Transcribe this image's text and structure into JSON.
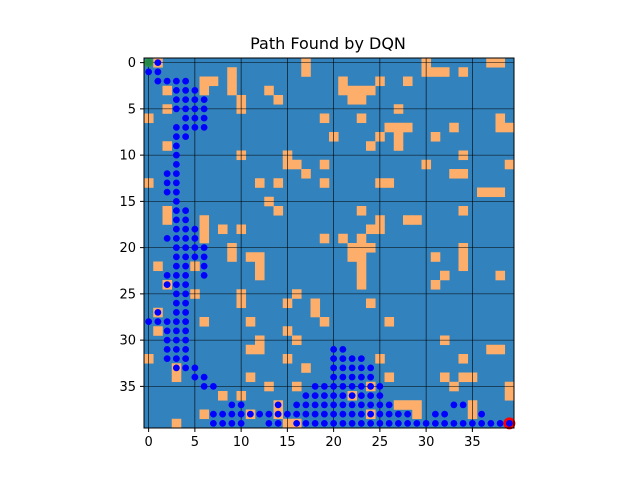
{
  "chart_data": {
    "type": "heatmap",
    "title": "Path Found by DQN",
    "grid_size": 40,
    "grid_lines": true,
    "x_ticks": [
      0,
      5,
      10,
      15,
      20,
      25,
      30,
      35
    ],
    "y_ticks": [
      0,
      5,
      10,
      15,
      20,
      25,
      30,
      35
    ],
    "xlim": [
      -0.5,
      39.5
    ],
    "ylim": [
      39.5,
      -0.5
    ],
    "colors": {
      "free": "#3282bd",
      "obstacle": "#fdae6b",
      "path": "#0000ff",
      "start": "#2ca02c",
      "goal": "#ff0000",
      "gridline": "#000000"
    },
    "start": [
      0,
      0
    ],
    "goal": [
      39,
      39
    ],
    "obstacles": [
      [
        1,
        0
      ],
      [
        17,
        0
      ],
      [
        30,
        0
      ],
      [
        37,
        0
      ],
      [
        38,
        0
      ],
      [
        9,
        1
      ],
      [
        17,
        1
      ],
      [
        30,
        1
      ],
      [
        31,
        1
      ],
      [
        32,
        1
      ],
      [
        34,
        1
      ],
      [
        6,
        2
      ],
      [
        7,
        2
      ],
      [
        9,
        2
      ],
      [
        21,
        2
      ],
      [
        25,
        2
      ],
      [
        28,
        2
      ],
      [
        2,
        3
      ],
      [
        6,
        3
      ],
      [
        9,
        3
      ],
      [
        13,
        3
      ],
      [
        21,
        3
      ],
      [
        22,
        3
      ],
      [
        23,
        3
      ],
      [
        24,
        3
      ],
      [
        10,
        4
      ],
      [
        14,
        4
      ],
      [
        22,
        4
      ],
      [
        23,
        4
      ],
      [
        2,
        5
      ],
      [
        10,
        5
      ],
      [
        27,
        5
      ],
      [
        0,
        6
      ],
      [
        19,
        6
      ],
      [
        23,
        6
      ],
      [
        38,
        6
      ],
      [
        26,
        7
      ],
      [
        27,
        7
      ],
      [
        28,
        7
      ],
      [
        33,
        7
      ],
      [
        38,
        7
      ],
      [
        39,
        7
      ],
      [
        20,
        8
      ],
      [
        25,
        8
      ],
      [
        27,
        8
      ],
      [
        31,
        8
      ],
      [
        2,
        9
      ],
      [
        24,
        9
      ],
      [
        27,
        9
      ],
      [
        10,
        10
      ],
      [
        15,
        10
      ],
      [
        34,
        10
      ],
      [
        15,
        11
      ],
      [
        16,
        11
      ],
      [
        19,
        11
      ],
      [
        30,
        11
      ],
      [
        39,
        11
      ],
      [
        17,
        12
      ],
      [
        33,
        12
      ],
      [
        34,
        12
      ],
      [
        0,
        13
      ],
      [
        12,
        13
      ],
      [
        14,
        13
      ],
      [
        19,
        13
      ],
      [
        25,
        13
      ],
      [
        26,
        13
      ],
      [
        36,
        14
      ],
      [
        37,
        14
      ],
      [
        38,
        14
      ],
      [
        13,
        15
      ],
      [
        2,
        16
      ],
      [
        14,
        16
      ],
      [
        23,
        16
      ],
      [
        34,
        16
      ],
      [
        2,
        17
      ],
      [
        6,
        17
      ],
      [
        25,
        17
      ],
      [
        28,
        17
      ],
      [
        29,
        17
      ],
      [
        6,
        18
      ],
      [
        8,
        18
      ],
      [
        10,
        18
      ],
      [
        24,
        18
      ],
      [
        25,
        18
      ],
      [
        6,
        19
      ],
      [
        19,
        19
      ],
      [
        21,
        19
      ],
      [
        23,
        19
      ],
      [
        9,
        20
      ],
      [
        22,
        20
      ],
      [
        23,
        20
      ],
      [
        24,
        20
      ],
      [
        34,
        20
      ],
      [
        9,
        21
      ],
      [
        11,
        21
      ],
      [
        12,
        21
      ],
      [
        22,
        21
      ],
      [
        23,
        21
      ],
      [
        31,
        21
      ],
      [
        34,
        21
      ],
      [
        1,
        22
      ],
      [
        5,
        22
      ],
      [
        12,
        22
      ],
      [
        23,
        22
      ],
      [
        34,
        22
      ],
      [
        12,
        23
      ],
      [
        23,
        23
      ],
      [
        32,
        23
      ],
      [
        38,
        23
      ],
      [
        2,
        24
      ],
      [
        23,
        24
      ],
      [
        31,
        24
      ],
      [
        5,
        25
      ],
      [
        10,
        25
      ],
      [
        16,
        25
      ],
      [
        10,
        26
      ],
      [
        15,
        26
      ],
      [
        18,
        26
      ],
      [
        24,
        26
      ],
      [
        1,
        27
      ],
      [
        18,
        27
      ],
      [
        6,
        28
      ],
      [
        11,
        28
      ],
      [
        19,
        28
      ],
      [
        26,
        28
      ],
      [
        1,
        29
      ],
      [
        15,
        29
      ],
      [
        12,
        30
      ],
      [
        16,
        30
      ],
      [
        32,
        30
      ],
      [
        11,
        31
      ],
      [
        12,
        31
      ],
      [
        37,
        31
      ],
      [
        38,
        31
      ],
      [
        0,
        32
      ],
      [
        15,
        32
      ],
      [
        25,
        32
      ],
      [
        34,
        32
      ],
      [
        3,
        33
      ],
      [
        17,
        33
      ],
      [
        3,
        34
      ],
      [
        11,
        34
      ],
      [
        26,
        34
      ],
      [
        32,
        34
      ],
      [
        34,
        34
      ],
      [
        35,
        34
      ],
      [
        13,
        35
      ],
      [
        16,
        35
      ],
      [
        24,
        35
      ],
      [
        33,
        35
      ],
      [
        39,
        35
      ],
      [
        8,
        36
      ],
      [
        10,
        36
      ],
      [
        22,
        36
      ],
      [
        39,
        36
      ],
      [
        14,
        37
      ],
      [
        27,
        37
      ],
      [
        28,
        37
      ],
      [
        29,
        37
      ],
      [
        35,
        37
      ],
      [
        6,
        38
      ],
      [
        11,
        38
      ],
      [
        14,
        38
      ],
      [
        24,
        38
      ],
      [
        29,
        38
      ],
      [
        35,
        38
      ],
      [
        3,
        39
      ],
      [
        15,
        39
      ],
      [
        16,
        39
      ]
    ],
    "path": [
      [
        0,
        0
      ],
      [
        1,
        0
      ],
      [
        0,
        1
      ],
      [
        1,
        1
      ],
      [
        1,
        2
      ],
      [
        2,
        2
      ],
      [
        3,
        2
      ],
      [
        4,
        2
      ],
      [
        3,
        3
      ],
      [
        4,
        3
      ],
      [
        5,
        3
      ],
      [
        3,
        4
      ],
      [
        4,
        4
      ],
      [
        5,
        4
      ],
      [
        6,
        4
      ],
      [
        3,
        5
      ],
      [
        4,
        5
      ],
      [
        5,
        5
      ],
      [
        6,
        5
      ],
      [
        4,
        6
      ],
      [
        5,
        6
      ],
      [
        6,
        6
      ],
      [
        3,
        7
      ],
      [
        4,
        7
      ],
      [
        5,
        7
      ],
      [
        6,
        7
      ],
      [
        3,
        8
      ],
      [
        4,
        8
      ],
      [
        3,
        9
      ],
      [
        3,
        10
      ],
      [
        3,
        11
      ],
      [
        2,
        12
      ],
      [
        3,
        12
      ],
      [
        2,
        13
      ],
      [
        3,
        13
      ],
      [
        2,
        14
      ],
      [
        3,
        14
      ],
      [
        3,
        15
      ],
      [
        3,
        16
      ],
      [
        4,
        16
      ],
      [
        3,
        17
      ],
      [
        4,
        17
      ],
      [
        3,
        18
      ],
      [
        4,
        18
      ],
      [
        5,
        18
      ],
      [
        2,
        19
      ],
      [
        3,
        19
      ],
      [
        4,
        19
      ],
      [
        5,
        19
      ],
      [
        3,
        20
      ],
      [
        4,
        20
      ],
      [
        5,
        20
      ],
      [
        6,
        20
      ],
      [
        3,
        21
      ],
      [
        4,
        21
      ],
      [
        5,
        21
      ],
      [
        6,
        21
      ],
      [
        3,
        22
      ],
      [
        4,
        22
      ],
      [
        6,
        22
      ],
      [
        2,
        23
      ],
      [
        3,
        23
      ],
      [
        4,
        23
      ],
      [
        6,
        23
      ],
      [
        2,
        24
      ],
      [
        3,
        24
      ],
      [
        4,
        24
      ],
      [
        3,
        25
      ],
      [
        4,
        25
      ],
      [
        3,
        26
      ],
      [
        4,
        26
      ],
      [
        1,
        27
      ],
      [
        3,
        27
      ],
      [
        4,
        27
      ],
      [
        0,
        28
      ],
      [
        1,
        28
      ],
      [
        2,
        28
      ],
      [
        3,
        28
      ],
      [
        4,
        28
      ],
      [
        2,
        29
      ],
      [
        3,
        29
      ],
      [
        4,
        29
      ],
      [
        2,
        30
      ],
      [
        3,
        30
      ],
      [
        4,
        30
      ],
      [
        2,
        31
      ],
      [
        3,
        31
      ],
      [
        4,
        31
      ],
      [
        2,
        32
      ],
      [
        3,
        32
      ],
      [
        4,
        32
      ],
      [
        3,
        33
      ],
      [
        4,
        33
      ],
      [
        5,
        33
      ],
      [
        5,
        34
      ],
      [
        6,
        34
      ],
      [
        6,
        35
      ],
      [
        7,
        35
      ],
      [
        9,
        37
      ],
      [
        10,
        37
      ],
      [
        14,
        37
      ],
      [
        7,
        38
      ],
      [
        8,
        38
      ],
      [
        9,
        38
      ],
      [
        10,
        38
      ],
      [
        11,
        38
      ],
      [
        12,
        38
      ],
      [
        13,
        38
      ],
      [
        14,
        38
      ],
      [
        7,
        39
      ],
      [
        8,
        39
      ],
      [
        9,
        39
      ],
      [
        10,
        39
      ],
      [
        13,
        39
      ],
      [
        14,
        39
      ],
      [
        20,
        31
      ],
      [
        21,
        31
      ],
      [
        20,
        32
      ],
      [
        21,
        32
      ],
      [
        22,
        32
      ],
      [
        23,
        32
      ],
      [
        20,
        33
      ],
      [
        21,
        33
      ],
      [
        22,
        33
      ],
      [
        23,
        33
      ],
      [
        24,
        33
      ],
      [
        20,
        34
      ],
      [
        21,
        34
      ],
      [
        22,
        34
      ],
      [
        23,
        34
      ],
      [
        24,
        34
      ],
      [
        18,
        35
      ],
      [
        19,
        35
      ],
      [
        20,
        35
      ],
      [
        21,
        35
      ],
      [
        22,
        35
      ],
      [
        23,
        35
      ],
      [
        24,
        35
      ],
      [
        25,
        35
      ],
      [
        17,
        36
      ],
      [
        18,
        36
      ],
      [
        19,
        36
      ],
      [
        20,
        36
      ],
      [
        21,
        36
      ],
      [
        22,
        36
      ],
      [
        23,
        36
      ],
      [
        24,
        36
      ],
      [
        25,
        36
      ],
      [
        16,
        37
      ],
      [
        17,
        37
      ],
      [
        18,
        37
      ],
      [
        19,
        37
      ],
      [
        20,
        37
      ],
      [
        21,
        37
      ],
      [
        22,
        37
      ],
      [
        23,
        37
      ],
      [
        24,
        37
      ],
      [
        25,
        37
      ],
      [
        26,
        37
      ],
      [
        15,
        38
      ],
      [
        16,
        38
      ],
      [
        17,
        38
      ],
      [
        18,
        38
      ],
      [
        19,
        38
      ],
      [
        20,
        38
      ],
      [
        21,
        38
      ],
      [
        22,
        38
      ],
      [
        23,
        38
      ],
      [
        24,
        38
      ],
      [
        25,
        38
      ],
      [
        26,
        38
      ],
      [
        27,
        38
      ],
      [
        28,
        38
      ],
      [
        16,
        39
      ],
      [
        17,
        39
      ],
      [
        18,
        39
      ],
      [
        19,
        39
      ],
      [
        20,
        39
      ],
      [
        21,
        39
      ],
      [
        22,
        39
      ],
      [
        23,
        39
      ],
      [
        24,
        39
      ],
      [
        25,
        39
      ],
      [
        26,
        39
      ],
      [
        27,
        39
      ],
      [
        28,
        39
      ],
      [
        29,
        39
      ],
      [
        30,
        39
      ],
      [
        31,
        38
      ],
      [
        32,
        38
      ],
      [
        33,
        37
      ],
      [
        34,
        37
      ],
      [
        31,
        39
      ],
      [
        32,
        39
      ],
      [
        33,
        39
      ],
      [
        34,
        39
      ],
      [
        35,
        39
      ],
      [
        36,
        39
      ],
      [
        37,
        39
      ],
      [
        38,
        39
      ],
      [
        39,
        39
      ],
      [
        36,
        38
      ]
    ]
  }
}
